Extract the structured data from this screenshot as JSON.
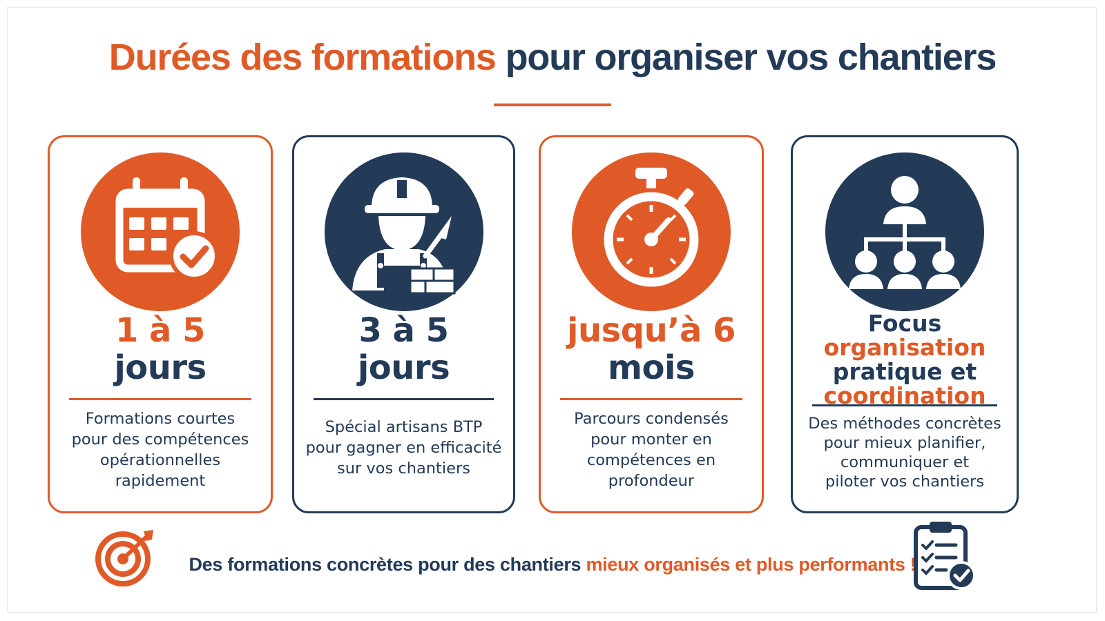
{
  "title": {
    "highlight": "Durées des formations",
    "rest": "pour organiser vos chantiers"
  },
  "colors": {
    "accent": "#e05a28",
    "navy": "#233b57",
    "background": "#ffffff"
  },
  "cards": [
    {
      "icon": "calendar-check-icon",
      "line1": "1 à 5",
      "line2": "jours",
      "description": [
        "Formations courtes",
        "pour des compétences",
        "opérationnelles",
        "rapidement"
      ]
    },
    {
      "icon": "construction-worker-icon",
      "line1": "3 à 5",
      "line2": "jours",
      "description": [
        "Spécial artisans BTP",
        "pour gagner en efficacité",
        "sur vos chantiers"
      ]
    },
    {
      "icon": "stopwatch-icon",
      "line1": "jusqu’à 6",
      "line2": "mois",
      "description": [
        "Parcours condensés",
        "pour monter en",
        "compétences en",
        "profondeur"
      ]
    },
    {
      "icon": "org-chart-icon",
      "focus_lines": [
        "Focus",
        "organisation",
        "pratique et",
        "coordination"
      ],
      "description": [
        "Des méthodes concrètes",
        "pour mieux planifier,",
        "communiquer et",
        "piloter vos chantiers"
      ]
    }
  ],
  "footer": {
    "icon_left": "target-arrow-icon",
    "text": "Des formations concrètes pour des chantiers",
    "highlight": "mieux organisés et plus performants",
    "end": " !",
    "icon_right": "clipboard-checklist-icon"
  }
}
